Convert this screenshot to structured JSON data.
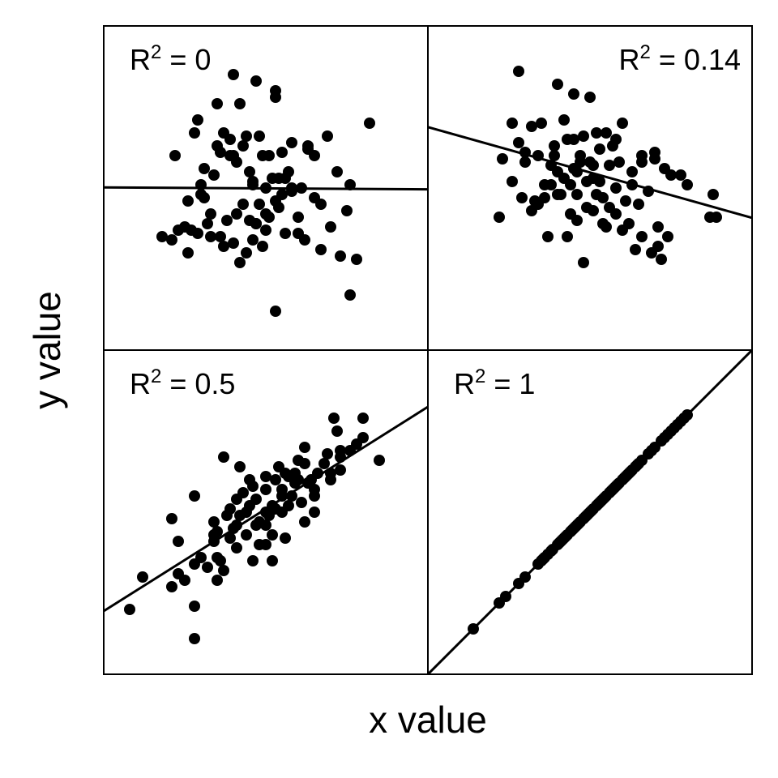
{
  "chart_data": [
    {
      "type": "scatter",
      "label": {
        "base": "R",
        "sup": "2",
        "rest": " = 0"
      },
      "label_position": "top-left",
      "fit_line": {
        "intercept": 5.02,
        "slope": -0.006
      },
      "xlim": [
        0,
        10
      ],
      "ylim": [
        0,
        10
      ],
      "points": [
        [
          1.8,
          3.5
        ],
        [
          2.1,
          3.4
        ],
        [
          2.3,
          3.7
        ],
        [
          2.5,
          3.8
        ],
        [
          2.6,
          3.0
        ],
        [
          2.9,
          3.6
        ],
        [
          3.0,
          4.8
        ],
        [
          3.2,
          3.9
        ],
        [
          3.3,
          3.5
        ],
        [
          3.6,
          3.5
        ],
        [
          3.7,
          3.2
        ],
        [
          3.9,
          6.0
        ],
        [
          4.0,
          3.3
        ],
        [
          4.2,
          2.7
        ],
        [
          4.4,
          3.0
        ],
        [
          4.6,
          3.4
        ],
        [
          4.7,
          3.9
        ],
        [
          4.8,
          4.5
        ],
        [
          4.9,
          3.2
        ],
        [
          5.0,
          3.7
        ],
        [
          5.1,
          4.1
        ],
        [
          5.3,
          1.2
        ],
        [
          5.5,
          4.8
        ],
        [
          5.6,
          3.6
        ],
        [
          5.8,
          4.9
        ],
        [
          6.0,
          4.1
        ],
        [
          6.2,
          3.4
        ],
        [
          6.5,
          4.7
        ],
        [
          6.7,
          3.1
        ],
        [
          7.0,
          3.8
        ],
        [
          7.3,
          2.9
        ],
        [
          7.5,
          4.3
        ],
        [
          7.6,
          1.7
        ],
        [
          7.8,
          2.8
        ],
        [
          8.2,
          7.0
        ],
        [
          2.2,
          6.0
        ],
        [
          2.8,
          6.7
        ],
        [
          3.4,
          5.4
        ],
        [
          3.6,
          6.1
        ],
        [
          3.9,
          6.5
        ],
        [
          4.1,
          5.8
        ],
        [
          4.3,
          6.3
        ],
        [
          4.5,
          5.5
        ],
        [
          4.8,
          6.6
        ],
        [
          5.2,
          5.3
        ],
        [
          5.5,
          6.1
        ],
        [
          5.8,
          6.4
        ],
        [
          6.3,
          6.3
        ],
        [
          6.5,
          6.0
        ],
        [
          6.9,
          6.6
        ],
        [
          7.2,
          5.5
        ],
        [
          7.6,
          5.1
        ],
        [
          3.1,
          5.6
        ],
        [
          3.5,
          7.6
        ],
        [
          4.2,
          7.6
        ],
        [
          4.7,
          8.3
        ],
        [
          4.0,
          8.5
        ],
        [
          5.3,
          8.0
        ],
        [
          5.3,
          7.8
        ],
        [
          2.9,
          7.1
        ],
        [
          3.7,
          6.7
        ],
        [
          4.6,
          5.2
        ],
        [
          5.0,
          5.0
        ],
        [
          5.8,
          5.0
        ],
        [
          2.7,
          3.7
        ],
        [
          4.3,
          4.5
        ],
        [
          5.0,
          4.2
        ],
        [
          5.4,
          4.4
        ],
        [
          3.8,
          4.0
        ],
        [
          6.0,
          3.6
        ],
        [
          4.1,
          4.2
        ],
        [
          3.5,
          6.3
        ],
        [
          4.4,
          6.6
        ],
        [
          5.1,
          6.0
        ],
        [
          6.3,
          6.2
        ],
        [
          3.1,
          4.7
        ],
        [
          5.6,
          5.3
        ],
        [
          4.5,
          4.0
        ],
        [
          6.1,
          5.0
        ],
        [
          3.0,
          5.1
        ],
        [
          2.6,
          4.6
        ],
        [
          4.0,
          6.0
        ],
        [
          5.4,
          5.3
        ],
        [
          6.7,
          4.5
        ],
        [
          4.9,
          6.0
        ],
        [
          5.7,
          5.5
        ],
        [
          5.3,
          4.6
        ],
        [
          4.7,
          3.9
        ],
        [
          4.6,
          5.1
        ],
        [
          3.3,
          4.2
        ]
      ]
    },
    {
      "type": "scatter",
      "label": {
        "base": "R",
        "sup": "2",
        "rest": " = 0.14"
      },
      "label_position": "top-right",
      "fit_line": {
        "intercept": 6.88,
        "slope": -0.28
      },
      "xlim": [
        0,
        10
      ],
      "ylim": [
        0,
        10
      ],
      "points": [
        [
          2.8,
          8.6
        ],
        [
          4.0,
          8.2
        ],
        [
          4.5,
          7.9
        ],
        [
          5.0,
          7.8
        ],
        [
          2.6,
          7.0
        ],
        [
          3.2,
          6.9
        ],
        [
          3.5,
          7.0
        ],
        [
          3.9,
          6.3
        ],
        [
          4.2,
          7.1
        ],
        [
          4.5,
          6.5
        ],
        [
          4.7,
          6.0
        ],
        [
          5.0,
          5.8
        ],
        [
          5.3,
          6.2
        ],
        [
          5.5,
          6.7
        ],
        [
          5.8,
          6.5
        ],
        [
          6.0,
          7.0
        ],
        [
          6.3,
          5.5
        ],
        [
          6.6,
          5.8
        ],
        [
          7.0,
          6.1
        ],
        [
          7.3,
          5.6
        ],
        [
          7.5,
          5.4
        ],
        [
          2.3,
          5.9
        ],
        [
          2.6,
          5.2
        ],
        [
          2.8,
          6.4
        ],
        [
          3.0,
          5.8
        ],
        [
          3.3,
          4.6
        ],
        [
          3.6,
          4.7
        ],
        [
          3.8,
          5.1
        ],
        [
          4.1,
          4.8
        ],
        [
          4.4,
          4.2
        ],
        [
          4.6,
          4.0
        ],
        [
          4.9,
          4.4
        ],
        [
          5.2,
          4.8
        ],
        [
          5.5,
          3.8
        ],
        [
          5.8,
          4.2
        ],
        [
          6.2,
          3.9
        ],
        [
          6.5,
          4.5
        ],
        [
          6.8,
          4.9
        ],
        [
          7.1,
          3.8
        ],
        [
          7.4,
          3.5
        ],
        [
          2.2,
          4.1
        ],
        [
          2.9,
          4.7
        ],
        [
          3.7,
          3.5
        ],
        [
          4.3,
          3.5
        ],
        [
          4.8,
          2.7
        ],
        [
          5.4,
          3.9
        ],
        [
          6.0,
          3.7
        ],
        [
          6.6,
          3.5
        ],
        [
          7.1,
          3.2
        ],
        [
          6.4,
          3.1
        ],
        [
          6.9,
          3.0
        ],
        [
          7.2,
          2.8
        ],
        [
          8.8,
          4.8
        ],
        [
          8.7,
          4.1
        ],
        [
          8.9,
          4.1
        ],
        [
          7.0,
          5.9
        ],
        [
          7.8,
          5.4
        ],
        [
          8.0,
          5.1
        ],
        [
          5.6,
          5.7
        ],
        [
          4.0,
          5.5
        ],
        [
          4.6,
          5.5
        ],
        [
          5.1,
          5.3
        ],
        [
          5.2,
          6.7
        ],
        [
          3.4,
          6.0
        ],
        [
          3.9,
          6.0
        ],
        [
          4.2,
          5.3
        ],
        [
          4.5,
          5.6
        ],
        [
          5.1,
          5.7
        ],
        [
          6.3,
          5.1
        ],
        [
          5.9,
          5.8
        ],
        [
          4.8,
          6.6
        ],
        [
          3.2,
          4.3
        ],
        [
          3.6,
          5.1
        ],
        [
          4.9,
          5.2
        ],
        [
          5.4,
          4.7
        ],
        [
          5.8,
          5.0
        ],
        [
          4.3,
          6.5
        ],
        [
          3.0,
          6.1
        ],
        [
          6.1,
          4.6
        ],
        [
          5.3,
          5.2
        ],
        [
          4.0,
          4.8
        ],
        [
          4.7,
          5.8
        ],
        [
          5.1,
          4.3
        ],
        [
          4.6,
          4.8
        ],
        [
          3.8,
          5.7
        ],
        [
          5.7,
          6.3
        ],
        [
          6.6,
          6.0
        ],
        [
          4.4,
          5.1
        ],
        [
          5.6,
          4.4
        ],
        [
          3.4,
          4.5
        ]
      ]
    },
    {
      "type": "scatter",
      "label": {
        "base": "R",
        "sup": "2",
        "rest": " = 0.5"
      },
      "label_position": "top-left",
      "fit_line": {
        "intercept": 1.95,
        "slope": 0.63
      },
      "xlim": [
        0,
        10
      ],
      "ylim": [
        0,
        10
      ],
      "points": [
        [
          0.8,
          2.0
        ],
        [
          1.2,
          3.0
        ],
        [
          2.1,
          2.7
        ],
        [
          2.3,
          3.1
        ],
        [
          2.5,
          2.9
        ],
        [
          2.8,
          3.4
        ],
        [
          3.0,
          3.6
        ],
        [
          3.5,
          2.9
        ],
        [
          3.6,
          3.5
        ],
        [
          3.9,
          4.2
        ],
        [
          4.2,
          4.9
        ],
        [
          4.6,
          3.5
        ],
        [
          4.8,
          4.7
        ],
        [
          5.0,
          4.0
        ],
        [
          5.2,
          5.2
        ],
        [
          5.5,
          5.5
        ],
        [
          5.7,
          5.2
        ],
        [
          5.9,
          6.2
        ],
        [
          6.2,
          4.7
        ],
        [
          6.5,
          5.0
        ],
        [
          6.8,
          6.5
        ],
        [
          7.0,
          6.0
        ],
        [
          7.3,
          6.3
        ],
        [
          7.6,
          6.9
        ],
        [
          8.0,
          7.3
        ],
        [
          8.5,
          6.6
        ],
        [
          7.2,
          7.5
        ],
        [
          7.8,
          7.1
        ],
        [
          6.6,
          6.2
        ],
        [
          6.0,
          6.6
        ],
        [
          2.1,
          4.8
        ],
        [
          2.3,
          4.1
        ],
        [
          2.8,
          5.5
        ],
        [
          3.4,
          4.1
        ],
        [
          3.7,
          3.2
        ],
        [
          4.1,
          4.6
        ],
        [
          4.4,
          5.0
        ],
        [
          4.7,
          5.4
        ],
        [
          5.0,
          5.7
        ],
        [
          5.3,
          6.0
        ],
        [
          5.6,
          6.2
        ],
        [
          5.9,
          5.9
        ],
        [
          6.2,
          6.5
        ],
        [
          6.5,
          5.7
        ],
        [
          3.7,
          6.7
        ],
        [
          4.2,
          6.4
        ],
        [
          7.1,
          7.9
        ],
        [
          7.3,
          6.9
        ],
        [
          6.0,
          6.0
        ],
        [
          5.0,
          6.1
        ],
        [
          4.5,
          6.0
        ],
        [
          3.5,
          4.4
        ],
        [
          3.9,
          5.1
        ],
        [
          5.2,
          4.3
        ],
        [
          2.8,
          1.1
        ],
        [
          2.8,
          2.1
        ],
        [
          8.0,
          7.9
        ],
        [
          7.3,
          6.7
        ],
        [
          6.5,
          5.5
        ],
        [
          5.5,
          5.7
        ],
        [
          5.4,
          6.4
        ],
        [
          4.5,
          5.2
        ],
        [
          4.0,
          4.5
        ],
        [
          3.4,
          4.7
        ],
        [
          5.2,
          3.5
        ],
        [
          3.5,
          3.6
        ],
        [
          6.2,
          7.0
        ],
        [
          3.4,
          4.3
        ],
        [
          5.1,
          4.9
        ],
        [
          4.1,
          3.9
        ],
        [
          5.0,
          5.0
        ],
        [
          4.7,
          4.6
        ],
        [
          5.8,
          5.5
        ],
        [
          5.3,
          5.1
        ],
        [
          6.3,
          5.9
        ],
        [
          4.3,
          5.6
        ],
        [
          7.0,
          6.2
        ],
        [
          5.6,
          4.2
        ],
        [
          6.1,
          5.3
        ],
        [
          4.8,
          4.0
        ],
        [
          4.1,
          5.4
        ],
        [
          5.7,
          6.1
        ],
        [
          6.9,
          6.8
        ],
        [
          5.0,
          4.6
        ],
        [
          4.4,
          4.3
        ],
        [
          3.8,
          4.9
        ],
        [
          6.4,
          6.0
        ],
        [
          5.5,
          5.0
        ],
        [
          4.6,
          5.8
        ],
        [
          3.2,
          3.3
        ]
      ]
    },
    {
      "type": "scatter",
      "label": {
        "base": "R",
        "sup": "2",
        "rest": " = 1"
      },
      "label_position": "top-left",
      "fit_line": {
        "intercept": 0,
        "slope": 1
      },
      "xlim": [
        0,
        10
      ],
      "ylim": [
        0,
        10
      ],
      "points": [
        [
          1.4,
          1.4
        ],
        [
          2.2,
          2.2
        ],
        [
          2.4,
          2.4
        ],
        [
          2.8,
          2.8
        ],
        [
          3.0,
          3.0
        ],
        [
          3.4,
          3.4
        ],
        [
          3.5,
          3.5
        ],
        [
          3.6,
          3.6
        ],
        [
          3.7,
          3.7
        ],
        [
          3.8,
          3.8
        ],
        [
          4.0,
          4.0
        ],
        [
          4.1,
          4.1
        ],
        [
          4.2,
          4.2
        ],
        [
          4.3,
          4.3
        ],
        [
          4.4,
          4.4
        ],
        [
          4.5,
          4.5
        ],
        [
          4.6,
          4.6
        ],
        [
          4.7,
          4.7
        ],
        [
          4.8,
          4.8
        ],
        [
          4.9,
          4.9
        ],
        [
          5.0,
          5.0
        ],
        [
          5.1,
          5.1
        ],
        [
          5.2,
          5.2
        ],
        [
          5.3,
          5.3
        ],
        [
          5.4,
          5.4
        ],
        [
          5.5,
          5.5
        ],
        [
          5.6,
          5.6
        ],
        [
          5.7,
          5.7
        ],
        [
          5.8,
          5.8
        ],
        [
          5.9,
          5.9
        ],
        [
          6.0,
          6.0
        ],
        [
          6.1,
          6.1
        ],
        [
          6.2,
          6.2
        ],
        [
          6.3,
          6.3
        ],
        [
          6.4,
          6.4
        ],
        [
          6.5,
          6.5
        ],
        [
          6.6,
          6.6
        ],
        [
          6.8,
          6.8
        ],
        [
          6.9,
          6.9
        ],
        [
          7.0,
          7.0
        ],
        [
          7.2,
          7.2
        ],
        [
          7.3,
          7.3
        ],
        [
          7.5,
          7.5
        ],
        [
          7.6,
          7.6
        ],
        [
          7.8,
          7.8
        ],
        [
          8.0,
          8.0
        ],
        [
          3.55,
          3.55
        ],
        [
          4.05,
          4.05
        ],
        [
          4.25,
          4.25
        ],
        [
          4.45,
          4.45
        ],
        [
          4.65,
          4.65
        ],
        [
          4.85,
          4.85
        ],
        [
          5.05,
          5.05
        ],
        [
          5.25,
          5.25
        ],
        [
          5.45,
          5.45
        ],
        [
          5.65,
          5.65
        ],
        [
          5.85,
          5.85
        ],
        [
          6.05,
          6.05
        ],
        [
          6.25,
          6.25
        ],
        [
          6.45,
          6.45
        ],
        [
          7.4,
          7.4
        ],
        [
          7.7,
          7.7
        ],
        [
          7.9,
          7.9
        ],
        [
          5.35,
          5.35
        ],
        [
          4.95,
          4.95
        ],
        [
          5.75,
          5.75
        ],
        [
          6.15,
          6.15
        ],
        [
          4.55,
          4.55
        ],
        [
          4.15,
          4.15
        ],
        [
          3.85,
          3.85
        ]
      ]
    }
  ],
  "xlabel": "x value",
  "ylabel": "y value"
}
